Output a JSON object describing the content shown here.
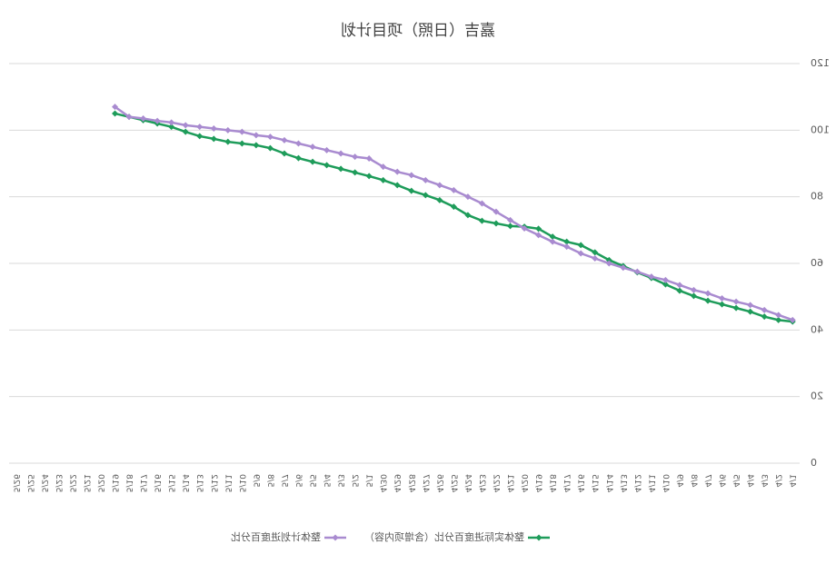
{
  "chart_data": {
    "type": "line",
    "title": "嘉吉（日照）项目计划",
    "categories": [
      "4/1",
      "4/2",
      "4/3",
      "4/4",
      "4/5",
      "4/6",
      "4/7",
      "4/8",
      "4/9",
      "4/10",
      "4/11",
      "4/12",
      "4/13",
      "4/14",
      "4/15",
      "4/16",
      "4/17",
      "4/18",
      "4/19",
      "4/20",
      "4/21",
      "4/22",
      "4/23",
      "4/24",
      "4/25",
      "4/26",
      "4/27",
      "4/28",
      "4/29",
      "4/30",
      "5/1",
      "5/2",
      "5/3",
      "5/4",
      "5/5",
      "5/6",
      "5/7",
      "5/8",
      "5/9",
      "5/10",
      "5/11",
      "5/12",
      "5/13",
      "5/14",
      "5/15",
      "5/16",
      "5/17",
      "5/18",
      "5/19",
      "5/20",
      "5/21",
      "5/22",
      "5/23",
      "5/24",
      "5/25",
      "5/26"
    ],
    "series": [
      {
        "name": "整体实际进度百分比（含增项内容）",
        "color": "#1e9c5a",
        "values": [
          42.5,
          43,
          44,
          45.5,
          46.6,
          47.7,
          48.8,
          50.2,
          51.8,
          53.7,
          55.6,
          57.3,
          59.2,
          61,
          63.3,
          65.5,
          66.5,
          68,
          70.4,
          71,
          71.2,
          72,
          72.8,
          74.5,
          77,
          79,
          80.5,
          81.8,
          83.5,
          85,
          86.2,
          87.3,
          88.4,
          89.5,
          90.5,
          91.6,
          93,
          94.6,
          95.5,
          96,
          96.5,
          97.4,
          98.2,
          99.5,
          101,
          102,
          103,
          104,
          105,
          null,
          null,
          null,
          null,
          null,
          null,
          null
        ]
      },
      {
        "name": "整体计划进度百分比",
        "color": "#a98bd0",
        "values": [
          43,
          44.5,
          46,
          47.5,
          48.5,
          49.5,
          51,
          52,
          53.5,
          55,
          56,
          57.5,
          58.7,
          60,
          61.5,
          63,
          65,
          66.5,
          68.5,
          70.5,
          73,
          75.5,
          78,
          80,
          82,
          83.5,
          85,
          86.5,
          87.5,
          89,
          91.5,
          92,
          93,
          94,
          95,
          96,
          97,
          98,
          98.5,
          99.5,
          100,
          100.5,
          101,
          101.5,
          102.3,
          102.8,
          103.5,
          104,
          107,
          null,
          null,
          null,
          null,
          null,
          null,
          null
        ]
      }
    ],
    "ylim": [
      0,
      120
    ],
    "yticks": [
      0,
      20,
      40,
      60,
      80,
      100,
      120
    ],
    "grid": true,
    "legend": "bottom"
  }
}
